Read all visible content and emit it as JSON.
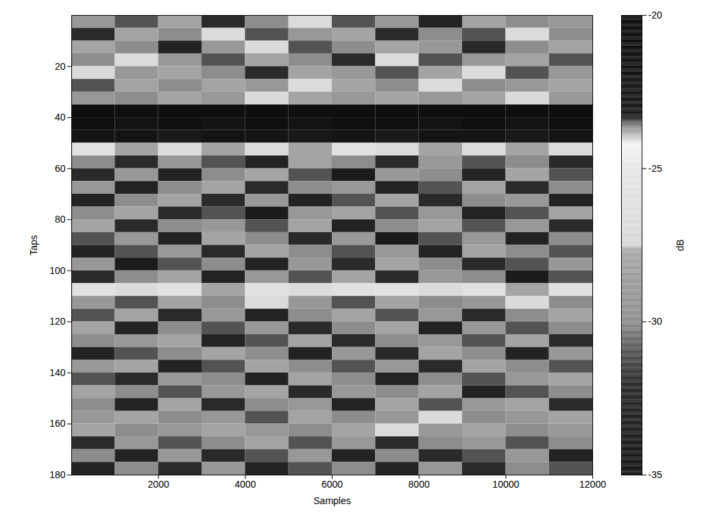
{
  "chart_data": {
    "type": "heatmap",
    "xlabel": "Samples",
    "ylabel": "Taps",
    "xlim": [
      0,
      12000
    ],
    "xticks": [
      2000,
      4000,
      6000,
      8000,
      10000,
      12000
    ],
    "ylim": [
      0,
      180
    ],
    "yticks": [
      20,
      40,
      60,
      80,
      100,
      120,
      140,
      160,
      180
    ],
    "x_edges": [
      0,
      1000,
      2000,
      3000,
      4000,
      5000,
      6000,
      7000,
      8000,
      9000,
      10000,
      11000,
      12000
    ],
    "y_edges": [
      0,
      5,
      10,
      15,
      20,
      25,
      30,
      35,
      40,
      45,
      50,
      55,
      60,
      65,
      70,
      75,
      80,
      85,
      90,
      95,
      100,
      105,
      110,
      115,
      120,
      125,
      130,
      135,
      140,
      145,
      150,
      155,
      160,
      165,
      170,
      175,
      180
    ],
    "cells": [
      [
        -29,
        -31,
        -28,
        -32,
        -30,
        -27,
        -31,
        -29,
        -33,
        -28,
        -30,
        -29
      ],
      [
        -32,
        -28,
        -30,
        -27,
        -31,
        -29,
        -28,
        -32,
        -30,
        -31,
        -27,
        -30
      ],
      [
        -28,
        -30,
        -33,
        -29,
        -27,
        -31,
        -30,
        -28,
        -29,
        -32,
        -30,
        -28
      ],
      [
        -30,
        -27,
        -29,
        -31,
        -28,
        -30,
        -32,
        -27,
        -31,
        -29,
        -28,
        -31
      ],
      [
        -27,
        -29,
        -28,
        -30,
        -32,
        -28,
        -29,
        -31,
        -28,
        -27,
        -31,
        -29
      ],
      [
        -31,
        -28,
        -30,
        -28,
        -29,
        -27,
        -28,
        -30,
        -27,
        -30,
        -29,
        -28
      ],
      [
        -29,
        -30,
        -28,
        -29,
        -27,
        -28,
        -29,
        -28,
        -29,
        -28,
        -27,
        -29
      ],
      [
        -21,
        -21,
        -21,
        -21,
        -21,
        -21,
        -21,
        -21,
        -21,
        -21,
        -21,
        -21
      ],
      [
        -21,
        -22,
        -21,
        -22,
        -21,
        -22,
        -21,
        -21,
        -22,
        -21,
        -22,
        -21
      ],
      [
        -22,
        -22,
        -23,
        -22,
        -22,
        -23,
        -22,
        -23,
        -22,
        -22,
        -23,
        -22
      ],
      [
        -26,
        -28,
        -27,
        -28,
        -27,
        -28,
        -26,
        -27,
        -28,
        -27,
        -28,
        -27
      ],
      [
        -30,
        -32,
        -29,
        -31,
        -33,
        -28,
        -30,
        -32,
        -29,
        -31,
        -30,
        -32
      ],
      [
        -32,
        -29,
        -33,
        -30,
        -28,
        -31,
        -34,
        -29,
        -30,
        -33,
        -28,
        -31
      ],
      [
        -29,
        -33,
        -30,
        -28,
        -32,
        -30,
        -29,
        -33,
        -31,
        -28,
        -32,
        -30
      ],
      [
        -33,
        -30,
        -28,
        -32,
        -29,
        -33,
        -31,
        -28,
        -32,
        -30,
        -29,
        -33
      ],
      [
        -30,
        -28,
        -32,
        -31,
        -34,
        -29,
        -28,
        -31,
        -29,
        -33,
        -31,
        -28
      ],
      [
        -28,
        -32,
        -30,
        -29,
        -31,
        -28,
        -33,
        -30,
        -28,
        -31,
        -29,
        -32
      ],
      [
        -31,
        -29,
        -33,
        -28,
        -30,
        -32,
        -29,
        -34,
        -31,
        -29,
        -33,
        -30
      ],
      [
        -33,
        -31,
        -29,
        -32,
        -28,
        -30,
        -31,
        -29,
        -33,
        -28,
        -30,
        -31
      ],
      [
        -29,
        -34,
        -31,
        -30,
        -33,
        -29,
        -32,
        -28,
        -30,
        -32,
        -31,
        -29
      ],
      [
        -32,
        -30,
        -28,
        -33,
        -29,
        -31,
        -28,
        -32,
        -29,
        -30,
        -34,
        -31
      ],
      [
        -26,
        -27,
        -26,
        -28,
        -26,
        -27,
        -26,
        -26,
        -27,
        -26,
        -28,
        -26
      ],
      [
        -29,
        -31,
        -28,
        -30,
        -27,
        -29,
        -31,
        -28,
        -30,
        -29,
        -27,
        -30
      ],
      [
        -31,
        -28,
        -32,
        -29,
        -33,
        -30,
        -28,
        -31,
        -29,
        -32,
        -30,
        -28
      ],
      [
        -28,
        -33,
        -30,
        -31,
        -29,
        -32,
        -30,
        -28,
        -33,
        -29,
        -31,
        -30
      ],
      [
        -30,
        -29,
        -28,
        -33,
        -31,
        -28,
        -32,
        -30,
        -29,
        -31,
        -28,
        -32
      ],
      [
        -33,
        -31,
        -30,
        -28,
        -30,
        -33,
        -29,
        -32,
        -28,
        -30,
        -33,
        -29
      ],
      [
        -29,
        -28,
        -33,
        -31,
        -28,
        -30,
        -31,
        -29,
        -32,
        -28,
        -30,
        -31
      ],
      [
        -31,
        -32,
        -29,
        -30,
        -33,
        -28,
        -30,
        -33,
        -30,
        -31,
        -29,
        -28
      ],
      [
        -28,
        -30,
        -31,
        -29,
        -28,
        -32,
        -29,
        -30,
        -28,
        -33,
        -31,
        -30
      ],
      [
        -30,
        -33,
        -28,
        -32,
        -30,
        -29,
        -33,
        -28,
        -31,
        -29,
        -28,
        -32
      ],
      [
        -29,
        -28,
        -30,
        -29,
        -31,
        -28,
        -30,
        -29,
        -27,
        -30,
        -29,
        -28
      ],
      [
        -28,
        -30,
        -29,
        -28,
        -29,
        -30,
        -28,
        -27,
        -29,
        -28,
        -30,
        -29
      ],
      [
        -32,
        -29,
        -31,
        -30,
        -28,
        -31,
        -29,
        -32,
        -30,
        -29,
        -31,
        -30
      ],
      [
        -30,
        -33,
        -29,
        -32,
        -31,
        -29,
        -33,
        -30,
        -32,
        -31,
        -29,
        -33
      ],
      [
        -33,
        -30,
        -32,
        -29,
        -33,
        -31,
        -30,
        -33,
        -29,
        -32,
        -30,
        -31
      ]
    ],
    "colorbar": {
      "label": "dB",
      "range": [
        -35,
        -20
      ],
      "ticks": [
        -35,
        -30,
        -25,
        -20
      ]
    }
  }
}
